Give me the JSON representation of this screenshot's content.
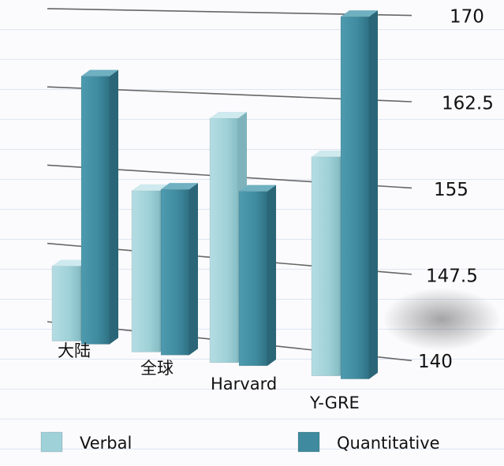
{
  "chart_data": {
    "type": "bar",
    "title": "",
    "xlabel": "",
    "ylabel": "",
    "categories": [
      "大陆",
      "全球",
      "Harvard",
      "Y-GRE"
    ],
    "series": [
      {
        "name": "Verbal",
        "values": [
          145.5,
          153.2,
          160.3,
          157.3
        ]
      },
      {
        "name": "Quantitative",
        "values": [
          163.7,
          153.5,
          153.8,
          169.8
        ]
      }
    ],
    "ylim": [
      140,
      170
    ],
    "yticks": [
      "140",
      "147.5",
      "155",
      "162.5",
      "170"
    ],
    "legend": "bottom",
    "grid": true,
    "colors": {
      "Verbal": "#9fd1d8",
      "Quantitative": "#3f8a9e"
    }
  }
}
